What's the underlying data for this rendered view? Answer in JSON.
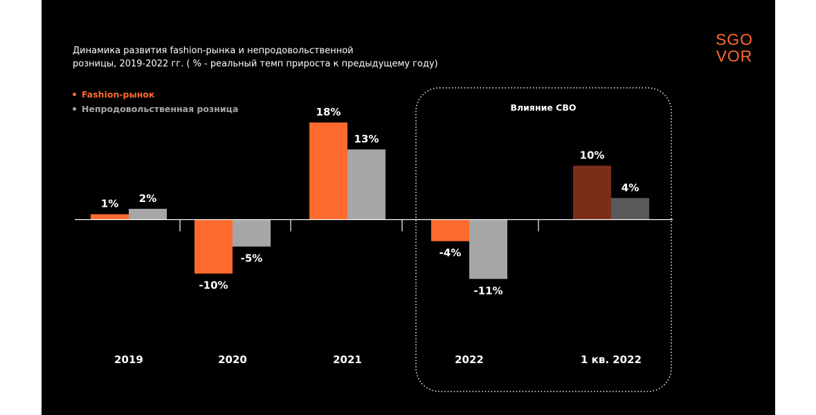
{
  "title_lines": [
    "Динамика развития fashion-рынка и непродовольственной",
    "розницы, 2019-2022 гг. ( % - реальный темп прироста к предыдущему году)"
  ],
  "logo": {
    "line1": "SGO",
    "line2": "VOR"
  },
  "legend": [
    {
      "label": "Fashion-рынок",
      "color": "#ff6a2e"
    },
    {
      "label": "Непродовольственная розница",
      "color": "#a6a6a6"
    }
  ],
  "highlight_box": {
    "label": "Влияние СВО"
  },
  "colors": {
    "background": "#000000",
    "accent": "#ff6a2e",
    "grey": "#a6a6a6",
    "highlight_fashion": "#7a2e1a",
    "highlight_nonfood": "#595959"
  },
  "chart_data": {
    "type": "bar",
    "categories": [
      "2019",
      "2020",
      "2021",
      "2022",
      "1 кв. 2022"
    ],
    "series": [
      {
        "name": "Fashion-рынок",
        "values": [
          1,
          -10,
          18,
          -4,
          10
        ],
        "labels": [
          "1%",
          "-10%",
          "18%",
          "-4%",
          "10%"
        ]
      },
      {
        "name": "Непродовольственная розница",
        "values": [
          2,
          -5,
          13,
          -11,
          4
        ],
        "labels": [
          "2%",
          "-5%",
          "13%",
          "-11%",
          "4%"
        ]
      }
    ],
    "ylim": [
      -11,
      18
    ],
    "title": "Динамика развития fashion-рынка и непродовольственной розницы, 2019-2022 гг. ( % - реальный темп прироста к предыдущему году)"
  }
}
